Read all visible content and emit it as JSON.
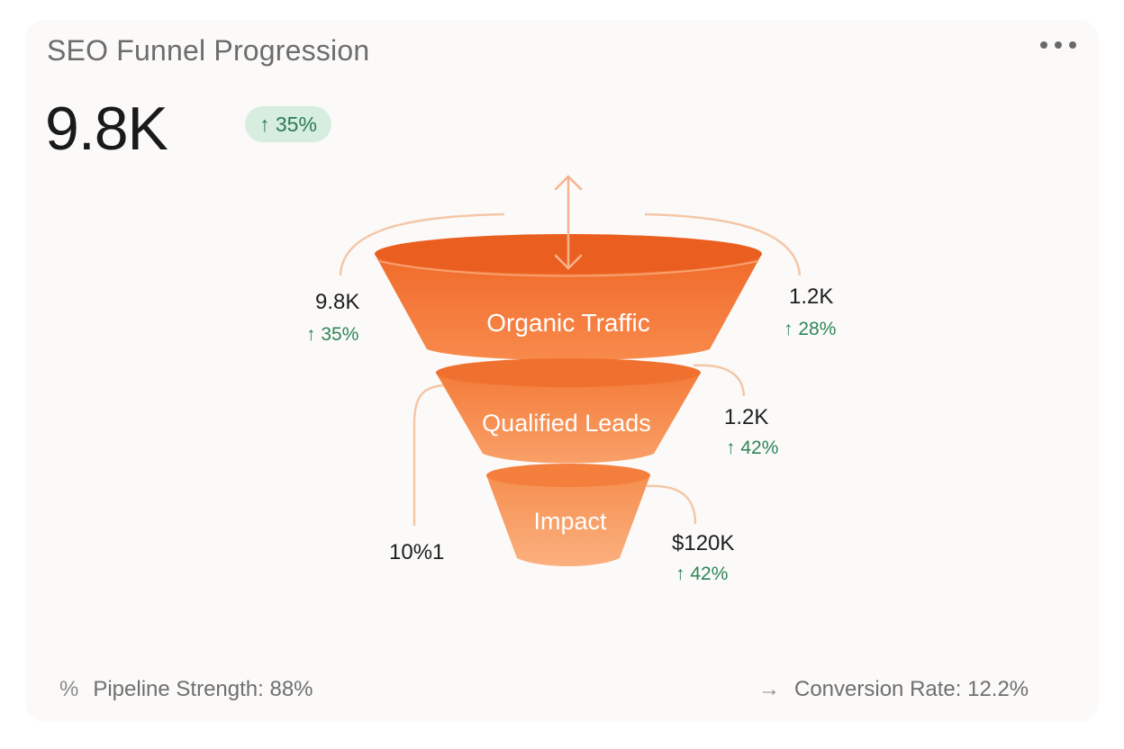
{
  "header": {
    "title": "SEO Funnel Progression",
    "more_icon": "more-horizontal-icon"
  },
  "summary": {
    "value": "9.8K",
    "change": "↑ 35%",
    "change_color": "#2e7b52",
    "change_bg": "#d6ede0"
  },
  "chart_data": {
    "type": "funnel",
    "stages": [
      {
        "label": "Organic Traffic",
        "value_left": "9.8K",
        "change_left": "↑ 35%",
        "value_right": "1.2K",
        "change_right": "↑ 28%"
      },
      {
        "label": "Qualified Leads",
        "value_right": "1.2K",
        "change_right": "↑ 42%"
      },
      {
        "label": "Impact",
        "value_left": "10%1",
        "value_right": "$120K",
        "change_right": "↑ 42%"
      }
    ],
    "colors": [
      "#f26b2a",
      "#f7894a",
      "#f8a06a"
    ],
    "connector_color": "#f4c7a8",
    "change_color": "#2f8657"
  },
  "footer": {
    "left_icon": "percent-icon",
    "left_glyph": "%",
    "left_text": "Pipeline Strength: 88%",
    "right_icon": "arrow-right-icon",
    "right_glyph": "→",
    "right_text": "Conversion Rate: 12.2%"
  }
}
